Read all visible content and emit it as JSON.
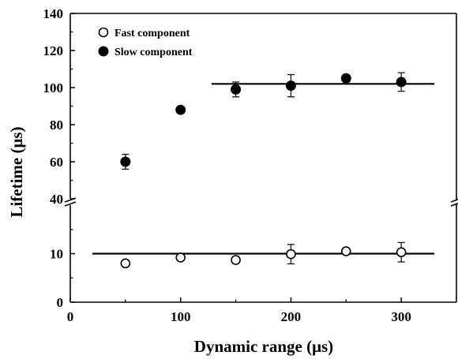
{
  "chart_data": {
    "type": "scatter",
    "xlabel": "Dynamic range (μs)",
    "ylabel": "Lifetime (μs)",
    "xlim": [
      0,
      350
    ],
    "x_ticks": [
      "0",
      "100",
      "200",
      "300"
    ],
    "axis_break": true,
    "y_upper": {
      "ylim": [
        40,
        140
      ],
      "ticks": [
        "40",
        "60",
        "80",
        "100",
        "120",
        "140"
      ]
    },
    "y_lower": {
      "ylim": [
        0,
        20
      ],
      "ticks": [
        "0",
        "10"
      ]
    },
    "legend": {
      "position": "top-left",
      "entries": [
        "Fast component",
        "Slow component"
      ]
    },
    "series": [
      {
        "name": "Fast component",
        "marker": "open-circle",
        "panel": "lower",
        "x": [
          50,
          100,
          150,
          200,
          250,
          300
        ],
        "y": [
          8.0,
          9.2,
          8.7,
          9.9,
          10.5,
          10.3
        ],
        "yerr": [
          0.6,
          0.6,
          0.7,
          2.0,
          0.7,
          2.0
        ],
        "fit_line": {
          "value": 10,
          "x_from": 20,
          "x_to": 330
        }
      },
      {
        "name": "Slow component",
        "marker": "filled-circle",
        "panel": "upper",
        "x": [
          50,
          100,
          150,
          200,
          250,
          300
        ],
        "y": [
          60,
          88,
          99,
          101,
          105,
          103
        ],
        "yerr": [
          4,
          1,
          4,
          6,
          2,
          5
        ],
        "fit_line": {
          "value": 102,
          "x_from": 128,
          "x_to": 330
        }
      }
    ]
  }
}
